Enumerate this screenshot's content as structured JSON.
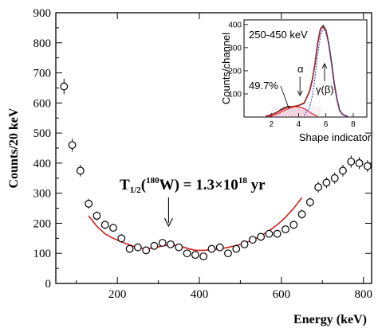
{
  "chart_data": [
    {
      "type": "scatter",
      "xlabel": "Energy (keV)",
      "ylabel": "Counts/20 keV",
      "xlim": [
        50,
        820
      ],
      "ylim": [
        0,
        900
      ],
      "xticks": [
        200,
        400,
        600,
        800
      ],
      "yticks": [
        0,
        100,
        200,
        300,
        400,
        500,
        600,
        700,
        800,
        900
      ],
      "annotation": {
        "prefix": "T",
        "sub": "1/2",
        "paren_open": "(",
        "mass": "180",
        "element": "W) = 1.3×10",
        "exponent": "18",
        "unit": " yr",
        "arrow_x": 325
      },
      "points": {
        "x": [
          70,
          90,
          110,
          130,
          150,
          170,
          190,
          210,
          230,
          250,
          270,
          290,
          310,
          330,
          350,
          370,
          390,
          410,
          430,
          450,
          470,
          490,
          510,
          530,
          550,
          570,
          590,
          610,
          630,
          650,
          670,
          690,
          710,
          730,
          750,
          770,
          790,
          810
        ],
        "y": [
          655,
          460,
          375,
          265,
          225,
          195,
          185,
          150,
          115,
          120,
          110,
          125,
          135,
          130,
          120,
          100,
          95,
          90,
          115,
          120,
          100,
          115,
          130,
          145,
          155,
          165,
          165,
          180,
          195,
          230,
          270,
          320,
          335,
          350,
          375,
          405,
          400,
          390
        ]
      },
      "fit": {
        "x": [
          130,
          150,
          170,
          190,
          210,
          230,
          250,
          270,
          290,
          310,
          330,
          350,
          370,
          390,
          410,
          430,
          450,
          470,
          490,
          510,
          530,
          550,
          570,
          590,
          610,
          630,
          650
        ],
        "y": [
          225,
          190,
          165,
          150,
          138,
          128,
          118,
          115,
          118,
          125,
          128,
          125,
          117,
          110,
          110,
          112,
          115,
          120,
          126,
          134,
          145,
          158,
          175,
          195,
          220,
          250,
          285
        ]
      }
    },
    {
      "type": "line",
      "title": "250-450 keV",
      "xlabel": "Shape indicator",
      "ylabel": "Counts/channel",
      "xlim": [
        0,
        9
      ],
      "ylim": [
        0,
        420
      ],
      "xticks": [
        2,
        4,
        6,
        8
      ],
      "yticks": [
        100,
        200,
        300,
        400
      ],
      "labels": {
        "fraction": "49.7%",
        "alpha": "α",
        "gamma": "γ(β)"
      },
      "series": [
        {
          "style": "black-histogram",
          "x": [
            1.6,
            2.0,
            2.4,
            2.8,
            3.2,
            3.6,
            4.0,
            4.4,
            4.8,
            5.0,
            5.2,
            5.4,
            5.6,
            5.8,
            6.0,
            6.2,
            6.4,
            6.6,
            6.8,
            7.0,
            7.2,
            7.6
          ],
          "y": [
            3,
            10,
            20,
            35,
            45,
            45,
            50,
            60,
            110,
            160,
            230,
            320,
            380,
            395,
            375,
            320,
            240,
            150,
            80,
            30,
            12,
            2
          ]
        },
        {
          "style": "red-total-fit",
          "x": [
            1.6,
            2.0,
            2.4,
            2.8,
            3.2,
            3.6,
            4.0,
            4.4,
            4.8,
            5.0,
            5.2,
            5.4,
            5.6,
            5.8,
            6.0,
            6.2,
            6.4,
            6.6,
            6.8,
            7.0,
            7.2,
            7.6
          ],
          "y": [
            2,
            9,
            20,
            32,
            42,
            46,
            50,
            62,
            108,
            158,
            228,
            318,
            378,
            392,
            372,
            318,
            238,
            148,
            80,
            32,
            12,
            2
          ]
        },
        {
          "style": "red-alpha-component",
          "x": [
            1.8,
            2.2,
            2.6,
            3.0,
            3.4,
            3.8,
            4.2,
            4.6,
            5.0,
            5.4
          ],
          "y": [
            2,
            8,
            18,
            30,
            40,
            45,
            42,
            30,
            14,
            3
          ]
        },
        {
          "style": "blue-gamma-component",
          "x": [
            4.4,
            4.8,
            5.0,
            5.2,
            5.4,
            5.6,
            5.8,
            6.0,
            6.2,
            6.4,
            6.6,
            6.8,
            7.0,
            7.2,
            7.6
          ],
          "y": [
            8,
            40,
            90,
            170,
            270,
            350,
            385,
            365,
            315,
            235,
            145,
            78,
            30,
            12,
            2
          ]
        }
      ]
    }
  ]
}
